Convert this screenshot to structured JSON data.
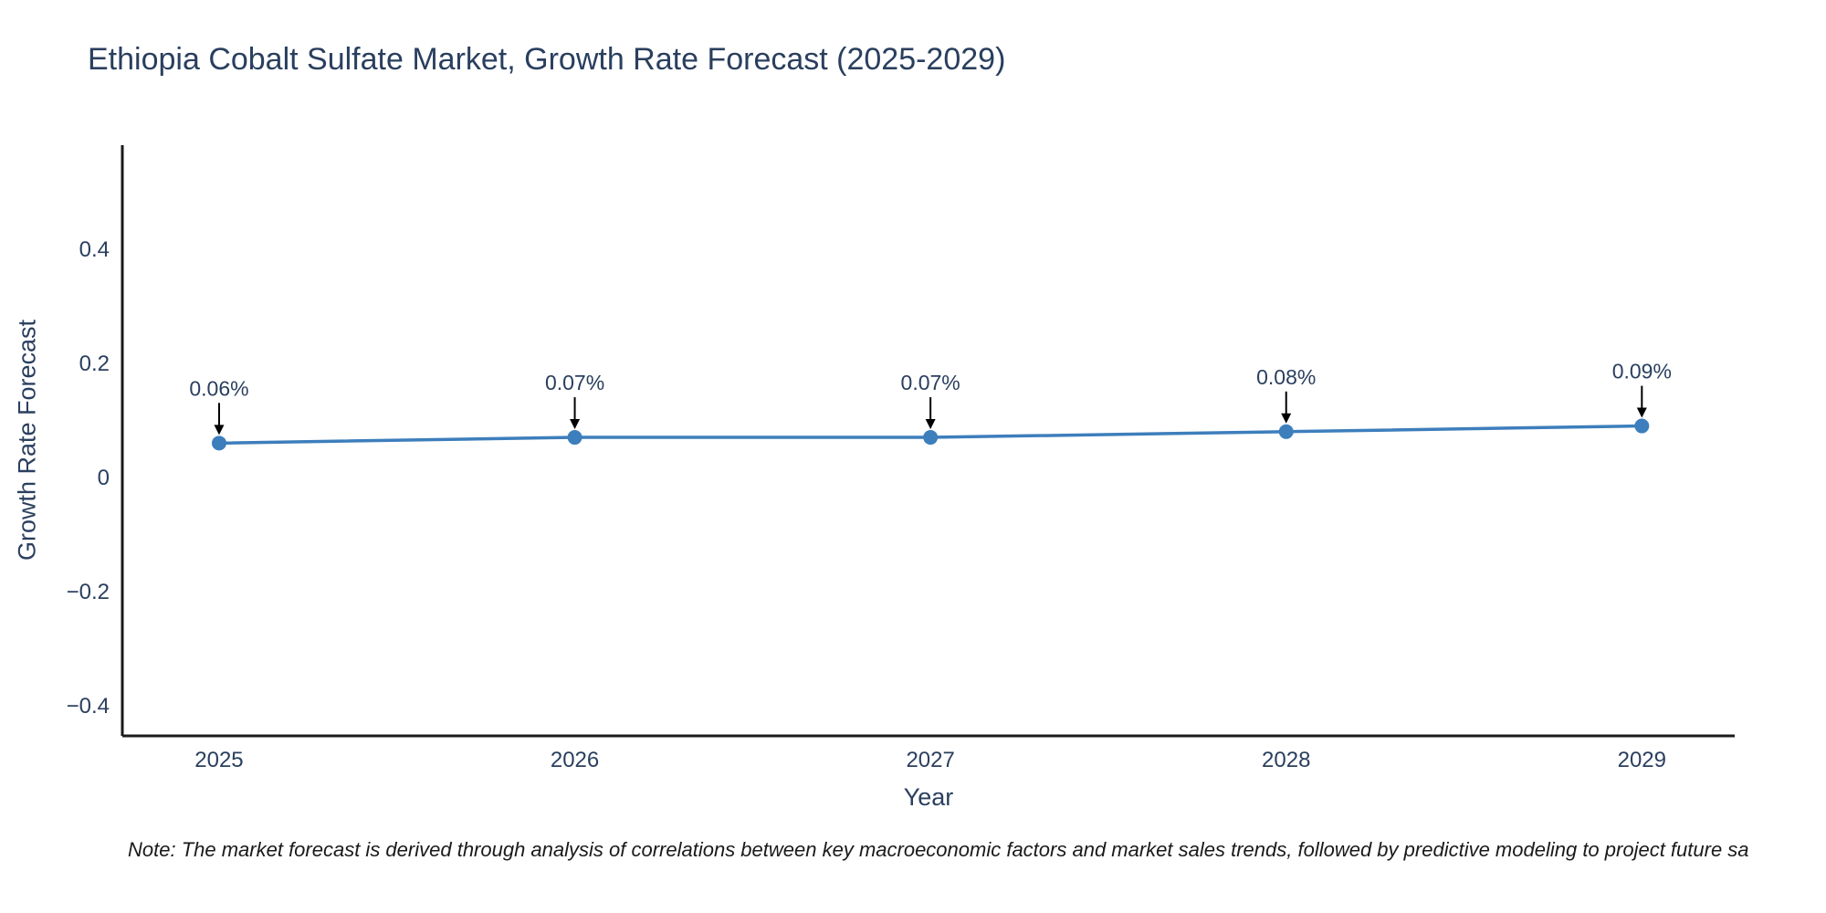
{
  "chart_data": {
    "type": "line",
    "title": "Ethiopia Cobalt Sulfate Market, Growth Rate Forecast (2025-2029)",
    "xlabel": "Year",
    "ylabel": "Growth Rate Forecast",
    "x": [
      2025,
      2026,
      2027,
      2028,
      2029
    ],
    "series": [
      {
        "name": "Growth Rate Forecast",
        "values": [
          0.06,
          0.07,
          0.07,
          0.08,
          0.09
        ],
        "point_labels": [
          "0.06%",
          "0.07%",
          "0.07%",
          "0.08%",
          "0.09%"
        ]
      }
    ],
    "xlim": [
      2024.728,
      2029.261
    ],
    "ylim": [
      -0.453,
      0.582
    ],
    "x_ticks": [
      {
        "value": 2025,
        "label": "2025"
      },
      {
        "value": 2026,
        "label": "2026"
      },
      {
        "value": 2027,
        "label": "2027"
      },
      {
        "value": 2028,
        "label": "2028"
      },
      {
        "value": 2029,
        "label": "2029"
      }
    ],
    "y_ticks": [
      {
        "value": -0.4,
        "label": "−0.4"
      },
      {
        "value": -0.2,
        "label": "−0.2"
      },
      {
        "value": 0,
        "label": "0"
      },
      {
        "value": 0.2,
        "label": "0.2"
      },
      {
        "value": 0.4,
        "label": "0.4"
      }
    ],
    "grid": false,
    "legend": "none",
    "line_color": "#3d7ebc",
    "marker_color": "#3d7ebc",
    "axis_color": "#1a1a1a",
    "text_color": "#2a3f5f",
    "annotation_arrow_color": "#000000",
    "note": "Note: The market forecast is derived through analysis of correlations between key macroeconomic factors and market sales trends, followed by predictive modeling to project future sa"
  }
}
